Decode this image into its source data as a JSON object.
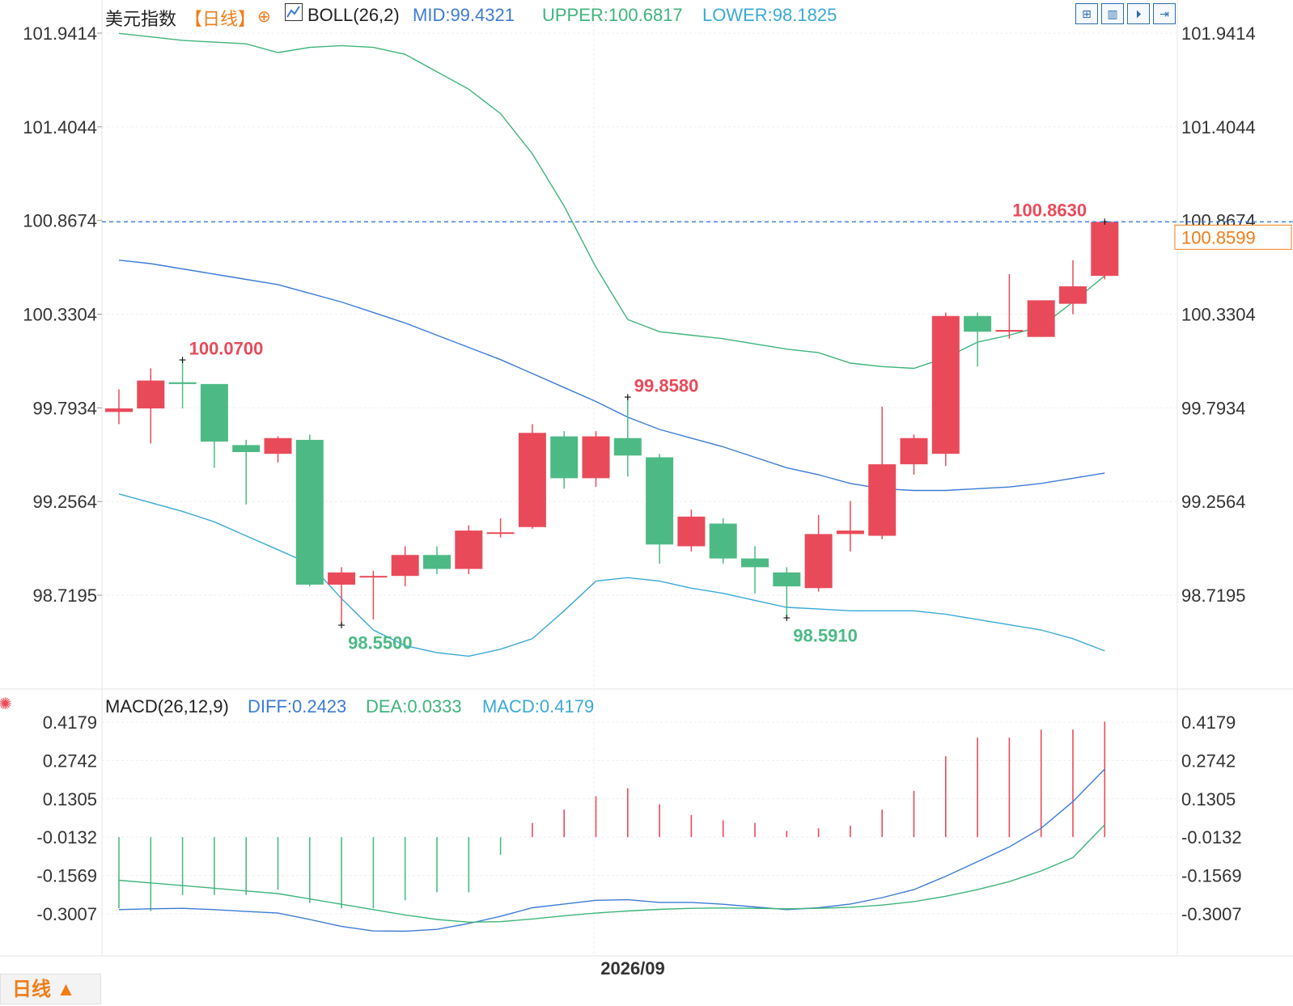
{
  "header": {
    "symbol": "美元指数",
    "period": "【日线】",
    "period_icon": "circle-plus-icon",
    "indicator_icon": "chart-icon",
    "boll_name": "BOLL(26,2)",
    "mid": "MID:99.4321",
    "upper": "UPPER:100.6817",
    "lower": "LOWER:98.1825"
  },
  "toolbar": [
    "grid-icon",
    "bars-icon",
    "step-forward-icon",
    "exit-icon"
  ],
  "price_axis": {
    "ticks": [
      101.9414,
      101.4044,
      100.8674,
      100.3304,
      99.7934,
      99.2564,
      98.7195
    ],
    "labels": [
      "101.9414",
      "101.4044",
      "100.8674",
      "100.3304",
      "99.7934",
      "99.2564",
      "98.7195"
    ],
    "last_price": "100.8599"
  },
  "annotations": {
    "high1": "100.0700",
    "high2": "99.8580",
    "high3": "100.8630",
    "low1": "98.5500",
    "low2": "98.5910"
  },
  "macd_header": {
    "icon": "settings-sun-icon",
    "name": "MACD(26,12,9)",
    "diff": "DIFF:0.2423",
    "dea": "DEA:0.0333",
    "macd": "MACD:0.4179"
  },
  "macd_axis": {
    "ticks": [
      0.4179,
      0.2742,
      0.1305,
      -0.0132,
      -0.1569,
      -0.3007
    ],
    "labels": [
      "0.4179",
      "0.2742",
      "0.1305",
      "-0.0132",
      "-0.1569",
      "-0.3007"
    ]
  },
  "time_axis": {
    "label": "2026/09"
  },
  "timeframe": {
    "label": "日线 ▲"
  },
  "colors": {
    "up": "#e94a5a",
    "down": "#4dba85",
    "upper": "#3fb47a",
    "mid": "#3d7bd6",
    "lower": "#3aa9d6",
    "last": "#ef7d17"
  },
  "chart_data": [
    {
      "type": "candlestick",
      "title": "美元指数 日线",
      "ylim": [
        98.35,
        102.0
      ],
      "candles": [
        {
          "o": 99.77,
          "h": 99.9,
          "l": 99.7,
          "c": 99.79
        },
        {
          "o": 99.79,
          "h": 100.02,
          "l": 99.59,
          "c": 99.95
        },
        {
          "o": 99.94,
          "h": 100.07,
          "l": 99.79,
          "c": 99.93
        },
        {
          "o": 99.93,
          "h": 99.93,
          "l": 99.45,
          "c": 99.6
        },
        {
          "o": 99.58,
          "h": 99.61,
          "l": 99.24,
          "c": 99.54
        },
        {
          "o": 99.53,
          "h": 99.63,
          "l": 99.48,
          "c": 99.62
        },
        {
          "o": 99.61,
          "h": 99.64,
          "l": 98.77,
          "c": 98.78
        },
        {
          "o": 98.78,
          "h": 98.88,
          "l": 98.55,
          "c": 98.85
        },
        {
          "o": 98.83,
          "h": 98.86,
          "l": 98.58,
          "c": 98.83
        },
        {
          "o": 98.83,
          "h": 99.0,
          "l": 98.77,
          "c": 98.95
        },
        {
          "o": 98.95,
          "h": 99.0,
          "l": 98.84,
          "c": 98.87
        },
        {
          "o": 98.87,
          "h": 99.12,
          "l": 98.84,
          "c": 99.09
        },
        {
          "o": 99.08,
          "h": 99.16,
          "l": 99.05,
          "c": 99.08
        },
        {
          "o": 99.11,
          "h": 99.7,
          "l": 99.1,
          "c": 99.65
        },
        {
          "o": 99.63,
          "h": 99.66,
          "l": 99.33,
          "c": 99.39
        },
        {
          "o": 99.39,
          "h": 99.66,
          "l": 99.34,
          "c": 99.63
        },
        {
          "o": 99.62,
          "h": 99.86,
          "l": 99.4,
          "c": 99.52
        },
        {
          "o": 99.51,
          "h": 99.53,
          "l": 98.9,
          "c": 99.01
        },
        {
          "o": 99.0,
          "h": 99.21,
          "l": 98.97,
          "c": 99.17
        },
        {
          "o": 99.13,
          "h": 99.16,
          "l": 98.9,
          "c": 98.93
        },
        {
          "o": 98.93,
          "h": 99.0,
          "l": 98.73,
          "c": 98.88
        },
        {
          "o": 98.85,
          "h": 98.88,
          "l": 98.59,
          "c": 98.77
        },
        {
          "o": 98.76,
          "h": 99.18,
          "l": 98.74,
          "c": 99.07
        },
        {
          "o": 99.07,
          "h": 99.26,
          "l": 98.97,
          "c": 99.09
        },
        {
          "o": 99.06,
          "h": 99.8,
          "l": 99.04,
          "c": 99.47
        },
        {
          "o": 99.47,
          "h": 99.64,
          "l": 99.41,
          "c": 99.62
        },
        {
          "o": 99.53,
          "h": 100.34,
          "l": 99.46,
          "c": 100.32
        },
        {
          "o": 100.32,
          "h": 100.34,
          "l": 100.03,
          "c": 100.23
        },
        {
          "o": 100.23,
          "h": 100.56,
          "l": 100.19,
          "c": 100.24
        },
        {
          "o": 100.2,
          "h": 100.4,
          "l": 100.2,
          "c": 100.41
        },
        {
          "o": 100.39,
          "h": 100.64,
          "l": 100.33,
          "c": 100.49
        },
        {
          "o": 100.55,
          "h": 100.86,
          "l": 100.53,
          "c": 100.86
        }
      ],
      "series": [
        {
          "name": "UPPER",
          "values": [
            101.94,
            101.92,
            101.9,
            101.89,
            101.88,
            101.83,
            101.86,
            101.87,
            101.86,
            101.82,
            101.72,
            101.62,
            101.48,
            101.25,
            100.95,
            100.6,
            100.3,
            100.23,
            100.21,
            100.19,
            100.16,
            100.13,
            100.11,
            100.05,
            100.03,
            100.02,
            100.08,
            100.17,
            100.21,
            100.26,
            100.4,
            100.55
          ]
        },
        {
          "name": "MID",
          "values": [
            100.64,
            100.62,
            100.59,
            100.56,
            100.53,
            100.5,
            100.45,
            100.4,
            100.34,
            100.28,
            100.21,
            100.14,
            100.07,
            99.99,
            99.91,
            99.83,
            99.74,
            99.67,
            99.62,
            99.57,
            99.51,
            99.45,
            99.41,
            99.36,
            99.33,
            99.32,
            99.32,
            99.33,
            99.34,
            99.36,
            99.39,
            99.42
          ]
        },
        {
          "name": "LOWER",
          "values": [
            99.3,
            99.25,
            99.2,
            99.14,
            99.06,
            98.98,
            98.9,
            98.7,
            98.52,
            98.43,
            98.39,
            98.37,
            98.41,
            98.47,
            98.63,
            98.8,
            98.82,
            98.8,
            98.76,
            98.73,
            98.69,
            98.65,
            98.64,
            98.63,
            98.63,
            98.63,
            98.61,
            98.58,
            98.55,
            98.52,
            98.47,
            98.4
          ]
        }
      ]
    },
    {
      "type": "bar",
      "title": "MACD(26,12,9)",
      "ylim": [
        -0.35,
        0.44
      ],
      "macd": [
        -0.28,
        -0.29,
        -0.23,
        -0.23,
        -0.23,
        -0.21,
        -0.26,
        -0.28,
        -0.28,
        -0.25,
        -0.22,
        -0.22,
        -0.08,
        0.04,
        0.09,
        0.14,
        0.17,
        0.11,
        0.07,
        0.05,
        0.04,
        0.01,
        0.02,
        0.03,
        0.09,
        0.16,
        0.29,
        0.36,
        0.36,
        0.39,
        0.39,
        0.42
      ],
      "series": [
        {
          "name": "DIFF",
          "values": [
            -0.285,
            -0.282,
            -0.28,
            -0.285,
            -0.292,
            -0.298,
            -0.322,
            -0.348,
            -0.365,
            -0.366,
            -0.359,
            -0.337,
            -0.31,
            -0.278,
            -0.264,
            -0.25,
            -0.248,
            -0.258,
            -0.258,
            -0.265,
            -0.275,
            -0.285,
            -0.278,
            -0.264,
            -0.24,
            -0.21,
            -0.16,
            -0.105,
            -0.05,
            0.02,
            0.12,
            0.242
          ]
        },
        {
          "name": "DEA",
          "values": [
            -0.175,
            -0.185,
            -0.195,
            -0.205,
            -0.215,
            -0.225,
            -0.245,
            -0.265,
            -0.285,
            -0.305,
            -0.322,
            -0.332,
            -0.33,
            -0.32,
            -0.308,
            -0.298,
            -0.29,
            -0.284,
            -0.28,
            -0.279,
            -0.28,
            -0.282,
            -0.28,
            -0.276,
            -0.268,
            -0.255,
            -0.235,
            -0.21,
            -0.18,
            -0.14,
            -0.09,
            0.033
          ]
        }
      ]
    }
  ]
}
